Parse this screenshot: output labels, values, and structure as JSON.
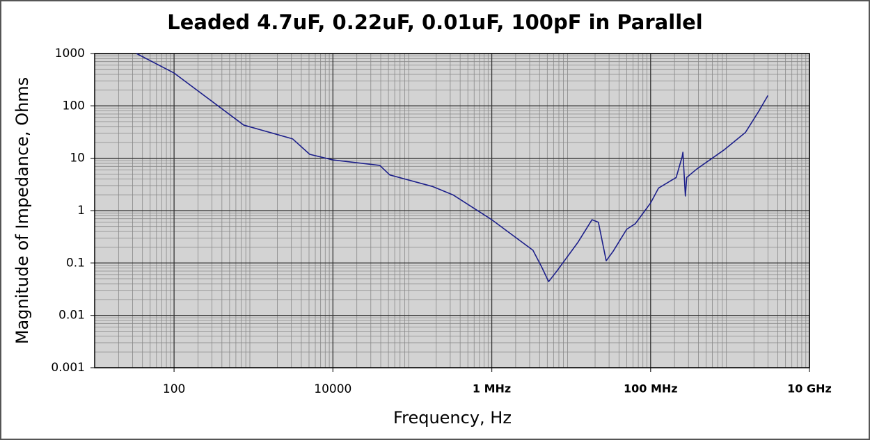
{
  "chart_data": {
    "type": "line",
    "title": "Leaded 4.7uF, 0.22uF, 0.01uF, 100pF in Parallel",
    "x_label": "Frequency, Hz",
    "y_label": "Magnitude of Impedance, Ohms",
    "log_x": true,
    "log_y": true,
    "grid": true,
    "xlim": [
      10,
      10000000000
    ],
    "ylim": [
      0.001,
      1000
    ],
    "xticks": [
      100,
      10000,
      {
        "value": 1000000,
        "label": "1 MHz"
      },
      {
        "value": 100000000,
        "label": "100 MHz"
      },
      {
        "value": 10000000000,
        "label": "10 GHz"
      }
    ],
    "yticks": [
      0.001,
      0.01,
      0.1,
      1,
      10,
      100,
      1000
    ],
    "series": [
      {
        "name": "Impedance",
        "color": "#1c1f8a",
        "x": [
          33.6,
          100,
          753,
          3100,
          5100,
          10000,
          38900,
          52000,
          178000,
          325000,
          1000000,
          3300000,
          4300000,
          5200000,
          6600000,
          12200000,
          18300000,
          22000000,
          27600000,
          34000000,
          50000000,
          64000000,
          100000000,
          126000000,
          210000000,
          250000000,
          255000000,
          274000000,
          285000000,
          380000000,
          850000000,
          1560000000,
          2300000000,
          3000000000
        ],
        "values": [
          1000,
          424,
          43,
          23.5,
          11.9,
          9.3,
          7.3,
          4.8,
          2.9,
          2.0,
          0.67,
          0.175,
          0.081,
          0.044,
          0.07,
          0.25,
          0.67,
          0.6,
          0.11,
          0.17,
          0.44,
          0.56,
          1.4,
          2.7,
          4.3,
          10.8,
          13,
          1.9,
          4.3,
          6.2,
          14.6,
          31,
          79,
          158
        ]
      }
    ]
  }
}
